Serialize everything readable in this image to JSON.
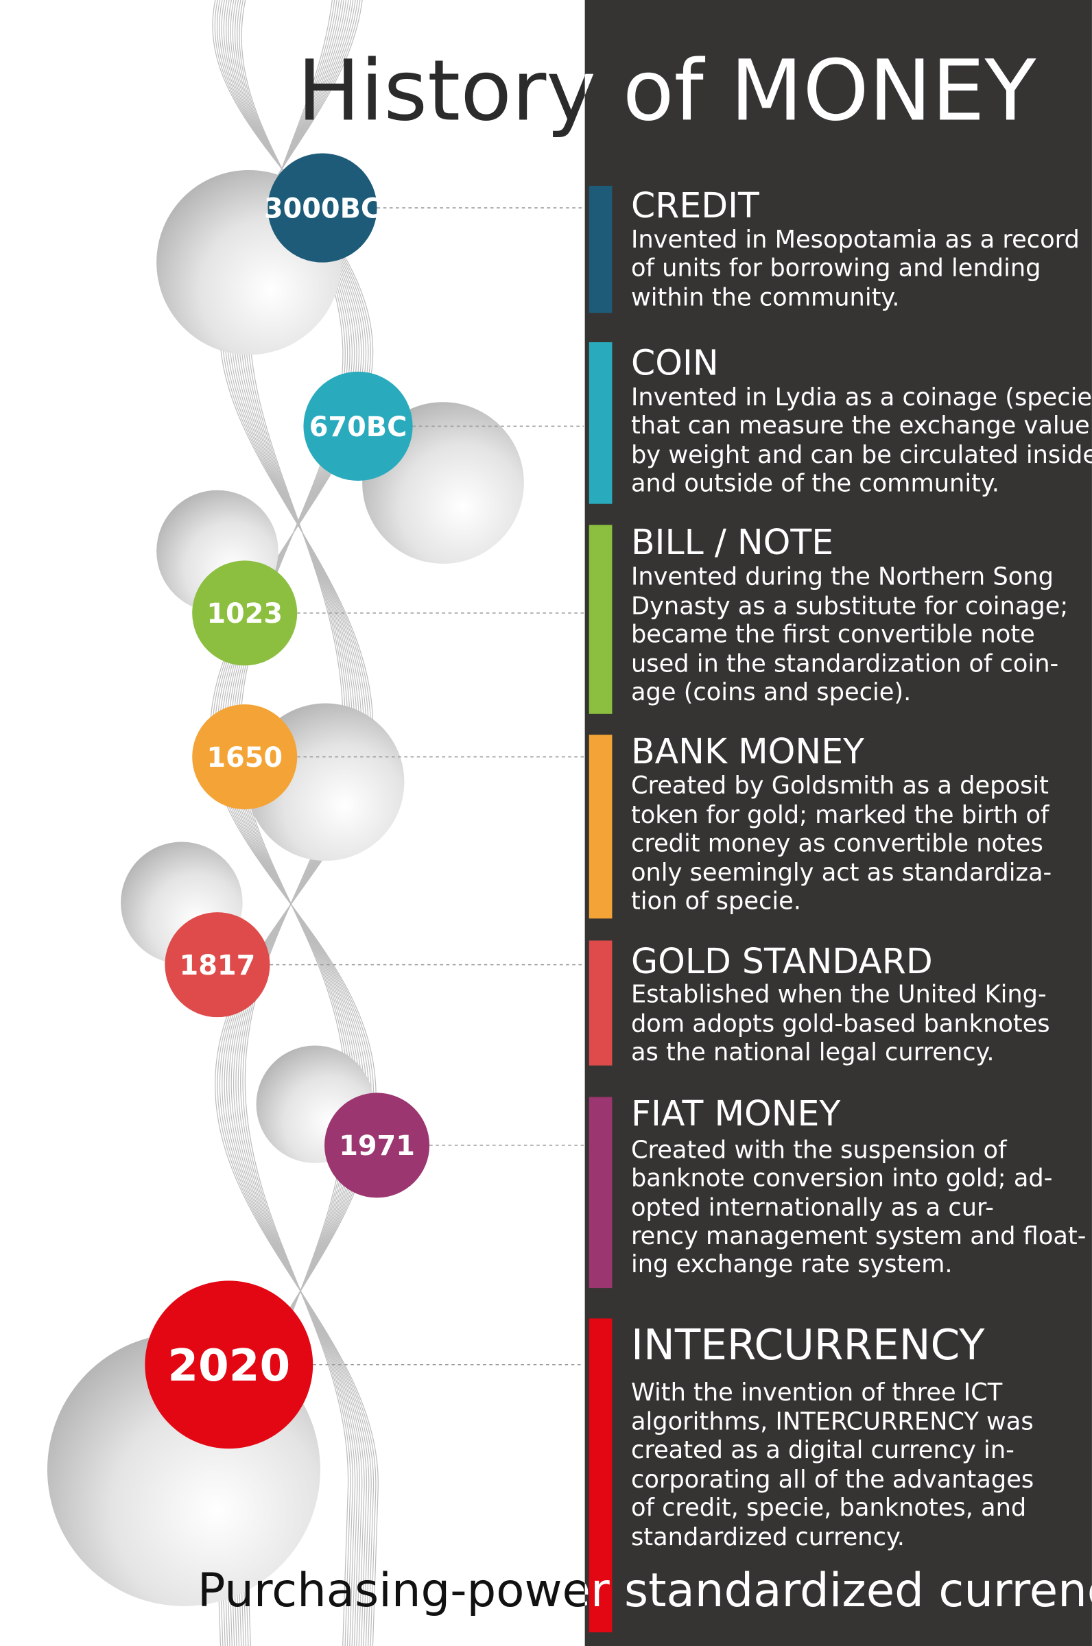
{
  "title": "History of MONEY",
  "footer": "Purchasing-power standardized currency",
  "items": [
    {
      "year": "3000BC",
      "name": "CREDIT",
      "color": "#1d5b78",
      "lines": [
        "Invented in Mesopotamia as a record",
        "of units for borrowing and lending",
        "within the community."
      ]
    },
    {
      "year": "670BC",
      "name": "COIN",
      "color": "#2aabbd",
      "lines": [
        "Invented in Lydia as a coinage (specie)",
        "that can measure the exchange value",
        "by weight and can be circulated inside",
        "and outside of the community."
      ]
    },
    {
      "year": "1023",
      "name": "BILL / NOTE",
      "color": "#8cbf3f",
      "lines": [
        "Invented during the Northern Song",
        "Dynasty as a substitute for coinage;",
        "became the first convertible note",
        "used in the standardization of coin-",
        "age (coins and specie)."
      ]
    },
    {
      "year": "1650",
      "name": "BANK MONEY",
      "color": "#f4a436",
      "lines": [
        "Created by Goldsmith as a deposit",
        "token for gold; marked the birth of",
        "credit money as convertible notes",
        "only seemingly act as standardiza-",
        "tion of specie."
      ]
    },
    {
      "year": "1817",
      "name": "GOLD STANDARD",
      "color": "#de4b4a",
      "lines": [
        "Established when the United King-",
        "dom adopts gold-based banknotes",
        "as the national legal currency."
      ]
    },
    {
      "year": "1971",
      "name": "FIAT MONEY",
      "color": "#9b3670",
      "lines": [
        "Created with the suspension of",
        "banknote conversion into gold; ad-",
        "opted internationally as a cur-",
        "rency management system and float-",
        "ing exchange rate system."
      ]
    },
    {
      "year": "2020",
      "name": "INTERCURRENCY",
      "color": "#e30613",
      "lines": [
        "With the invention of three ICT",
        "algorithms, INTERCURRENCY was",
        "created as a digital currency in-",
        "corporating all of the advantages",
        "of credit, specie, banknotes, and",
        "standardized currency."
      ]
    }
  ]
}
